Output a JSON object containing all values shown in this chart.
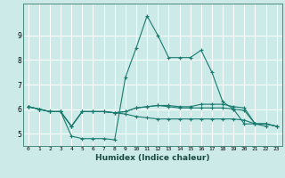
{
  "xlabel": "Humidex (Indice chaleur)",
  "bg_color": "#cceae8",
  "grid_color": "#ffffff",
  "line_color": "#1a7a6e",
  "x": [
    0,
    1,
    2,
    3,
    4,
    5,
    6,
    7,
    8,
    9,
    10,
    11,
    12,
    13,
    14,
    15,
    16,
    17,
    18,
    19,
    20,
    21,
    22,
    23
  ],
  "series": [
    [
      6.1,
      6.0,
      5.9,
      5.9,
      4.9,
      4.8,
      4.8,
      4.8,
      4.75,
      7.3,
      8.5,
      9.8,
      9.0,
      8.1,
      8.1,
      8.1,
      8.4,
      7.5,
      6.3,
      6.0,
      5.4,
      5.4,
      5.3,
      null
    ],
    [
      6.1,
      6.0,
      5.9,
      5.9,
      5.3,
      5.9,
      5.9,
      5.9,
      5.85,
      5.9,
      6.05,
      6.1,
      6.15,
      6.15,
      6.1,
      6.1,
      6.2,
      6.2,
      6.2,
      6.1,
      6.05,
      5.4,
      5.4,
      5.3
    ],
    [
      6.1,
      6.0,
      5.9,
      5.9,
      5.3,
      5.9,
      5.9,
      5.9,
      5.85,
      5.8,
      5.7,
      5.65,
      5.6,
      5.6,
      5.6,
      5.6,
      5.6,
      5.6,
      5.6,
      5.6,
      5.55,
      5.4,
      5.4,
      5.3
    ],
    [
      6.1,
      6.0,
      5.9,
      5.9,
      5.3,
      5.9,
      5.9,
      5.9,
      5.85,
      5.9,
      6.05,
      6.1,
      6.15,
      6.1,
      6.05,
      6.05,
      6.05,
      6.05,
      6.05,
      6.0,
      5.95,
      5.4,
      5.4,
      5.3
    ]
  ],
  "ylim": [
    4.5,
    10.3
  ],
  "yticks": [
    5,
    6,
    7,
    8,
    9
  ],
  "xlim": [
    -0.5,
    23.5
  ]
}
